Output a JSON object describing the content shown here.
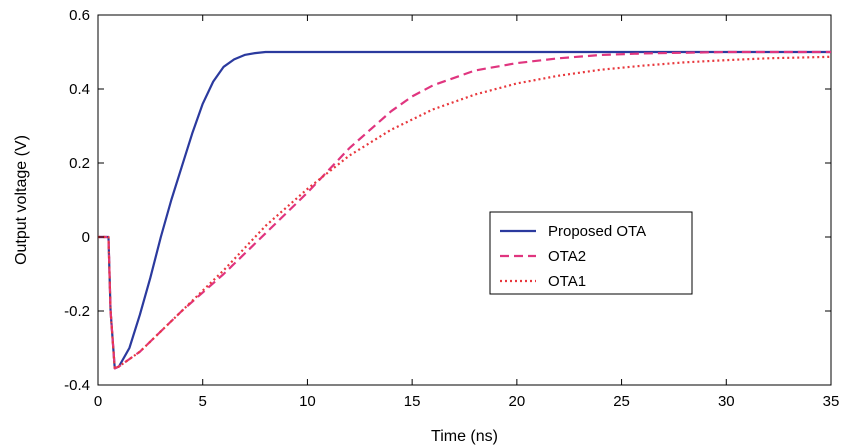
{
  "chart_data": {
    "type": "line",
    "title": "",
    "xlabel": "Time (ns)",
    "ylabel": "Output voltage (V)",
    "xlim": [
      0,
      35
    ],
    "ylim": [
      -0.4,
      0.6
    ],
    "x_ticks": [
      0,
      5,
      10,
      15,
      20,
      25,
      30,
      35
    ],
    "y_ticks": [
      -0.4,
      -0.2,
      0,
      0.2,
      0.4,
      0.6
    ],
    "x_tick_labels": [
      "0",
      "5",
      "10",
      "15",
      "20",
      "25",
      "30",
      "35"
    ],
    "y_tick_labels": [
      "-0.4",
      "-0.2",
      "0",
      "0.2",
      "0.4",
      "0.6"
    ],
    "grid": false,
    "legend_position": "right-center",
    "series": [
      {
        "name": "Proposed OTA",
        "color": "#2b3a9e",
        "style": "solid",
        "x": [
          0,
          0.5,
          0.6,
          0.8,
          1,
          1.5,
          2,
          2.5,
          3,
          3.5,
          4,
          4.5,
          5,
          5.5,
          6,
          6.5,
          7,
          7.5,
          8,
          8.5,
          9,
          10,
          15,
          20,
          25,
          30,
          35
        ],
        "y": [
          0,
          0,
          -0.2,
          -0.355,
          -0.35,
          -0.3,
          -0.21,
          -0.11,
          0.0,
          0.1,
          0.19,
          0.28,
          0.36,
          0.42,
          0.46,
          0.48,
          0.492,
          0.497,
          0.5,
          0.5,
          0.5,
          0.5,
          0.5,
          0.5,
          0.5,
          0.5,
          0.5
        ]
      },
      {
        "name": "OTA2",
        "color": "#e0357f",
        "style": "dashed",
        "x": [
          0,
          0.5,
          0.6,
          0.8,
          1,
          2,
          4,
          6,
          8,
          10,
          12,
          14,
          15,
          16,
          18,
          20,
          22,
          24,
          26,
          28,
          30,
          32,
          35
        ],
        "y": [
          0,
          0,
          -0.2,
          -0.355,
          -0.35,
          -0.31,
          -0.2,
          -0.1,
          0.01,
          0.12,
          0.24,
          0.34,
          0.38,
          0.41,
          0.45,
          0.47,
          0.483,
          0.492,
          0.496,
          0.498,
          0.5,
          0.5,
          0.5
        ]
      },
      {
        "name": "OTA1",
        "color": "#e8383d",
        "style": "dotted",
        "x": [
          0,
          0.5,
          0.6,
          0.8,
          1,
          2,
          4,
          6,
          8,
          10,
          12,
          14,
          16,
          18,
          20,
          22,
          24,
          26,
          28,
          30,
          32,
          35
        ],
        "y": [
          0,
          0,
          -0.2,
          -0.355,
          -0.35,
          -0.31,
          -0.2,
          -0.09,
          0.03,
          0.13,
          0.22,
          0.29,
          0.345,
          0.385,
          0.415,
          0.436,
          0.452,
          0.463,
          0.472,
          0.478,
          0.483,
          0.487
        ]
      }
    ]
  }
}
